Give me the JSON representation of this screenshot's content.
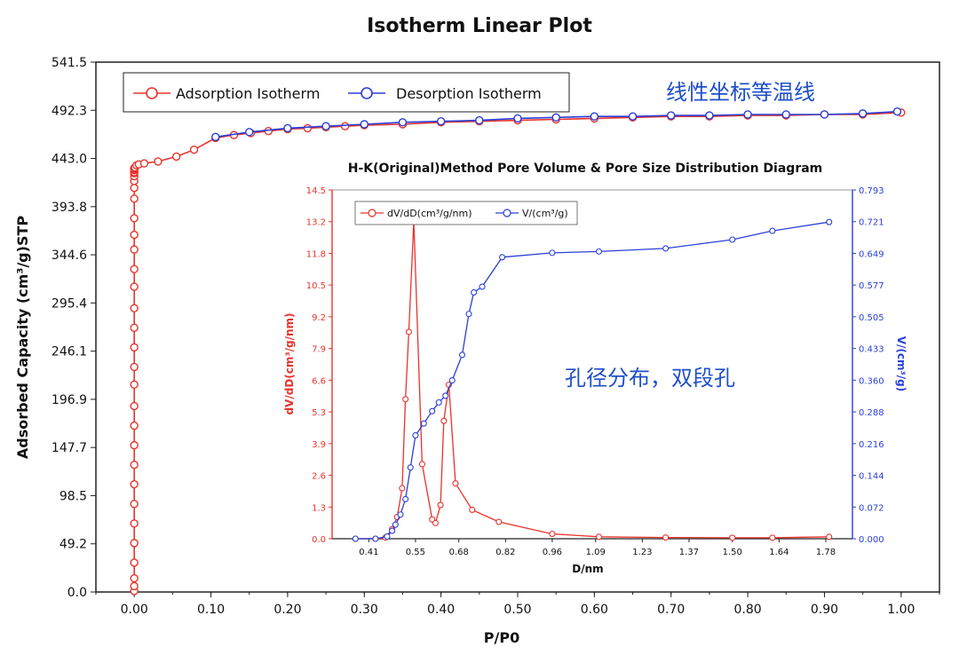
{
  "chart_data": [
    {
      "type": "line",
      "title": "Isotherm Linear Plot",
      "xlabel": "P/P0",
      "ylabel": "Adsorbed Capacity (cm³/g)STP",
      "xlim": [
        -0.05,
        1.05
      ],
      "ylim": [
        0,
        541.5
      ],
      "x_ticks": [
        "0.00",
        "0.10",
        "0.20",
        "0.30",
        "0.40",
        "0.50",
        "0.60",
        "0.70",
        "0.80",
        "0.90",
        "1.00"
      ],
      "y_ticks": [
        "0.0",
        "49.2",
        "98.5",
        "147.7",
        "196.9",
        "246.1",
        "295.4",
        "344.6",
        "393.8",
        "443.0",
        "492.3",
        "541.5"
      ],
      "legend_position": "top-left",
      "series": [
        {
          "name": "Adsorption Isotherm",
          "color": "#e8332c",
          "x": [
            0.0,
            0.0,
            0.0,
            0.0,
            0.0,
            0.0,
            0.0,
            0.0,
            0.0,
            0.0,
            0.0,
            0.0,
            0.0,
            0.0,
            0.0,
            0.0,
            0.0,
            0.0,
            0.0,
            0.0,
            0.0,
            0.0,
            0.0,
            0.0,
            0.0,
            0.0,
            0.0,
            0.0,
            0.0,
            0.0,
            0.0,
            0.001,
            0.003,
            0.006,
            0.013,
            0.031,
            0.055,
            0.078,
            0.106,
            0.13,
            0.152,
            0.175,
            0.2,
            0.226,
            0.25,
            0.275,
            0.3,
            0.35,
            0.4,
            0.45,
            0.5,
            0.55,
            0.6,
            0.65,
            0.7,
            0.75,
            0.8,
            0.85,
            0.9,
            0.95,
            1.0
          ],
          "y": [
            1.0,
            6.0,
            14.0,
            30.0,
            50.0,
            70.0,
            90.0,
            110.0,
            130.0,
            150.0,
            170.0,
            190.0,
            212.0,
            230.0,
            250.0,
            270.0,
            290.0,
            312.0,
            330.0,
            350.0,
            365.0,
            382.0,
            402.0,
            413.0,
            420.0,
            425.0,
            428.0,
            429.0,
            431.0,
            432.0,
            433.0,
            434.0,
            436.0,
            437.0,
            438.0,
            440.0,
            445.0,
            452.0,
            464.0,
            467.0,
            469.0,
            471.0,
            473.0,
            474.0,
            475.0,
            476.0,
            477.0,
            478.0,
            480.0,
            481.0,
            482.0,
            483.0,
            484.0,
            485.0,
            486.0,
            486.0,
            487.0,
            487.0,
            488.0,
            488.0,
            490.0
          ]
        },
        {
          "name": "Desorption Isotherm",
          "color": "#2b3fd6",
          "x": [
            0.106,
            0.15,
            0.2,
            0.25,
            0.3,
            0.35,
            0.4,
            0.45,
            0.5,
            0.55,
            0.6,
            0.65,
            0.7,
            0.75,
            0.8,
            0.85,
            0.9,
            0.95,
            0.995
          ],
          "y": [
            465.0,
            470.0,
            474.0,
            476.0,
            478.0,
            480.0,
            481.0,
            482.0,
            484.0,
            485.0,
            486.0,
            486.0,
            487.0,
            487.0,
            488.0,
            488.0,
            488.0,
            489.0,
            491.0
          ]
        }
      ],
      "annotation": "线性坐标等温线"
    },
    {
      "type": "line",
      "title": "H-K(Original)Method Pore Volume & Pore Size Distribution Diagram",
      "xlabel": "D/nm",
      "ylabel": "dV/dD(cm³/g/nm)",
      "ylabel_right": "V/(cm³/g)",
      "xlim": [
        0.3,
        1.86
      ],
      "ylim": [
        0,
        14.5
      ],
      "ylim_right": [
        0,
        0.793
      ],
      "x_ticks": [
        "0.41",
        "0.55",
        "0.68",
        "0.82",
        "0.96",
        "1.09",
        "1.23",
        "1.37",
        "1.50",
        "1.64",
        "1.78"
      ],
      "y_ticks": [
        "0.0",
        "1.3",
        "2.6",
        "3.9",
        "5.3",
        "6.6",
        "7.9",
        "9.2",
        "10.5",
        "11.8",
        "13.2",
        "14.5"
      ],
      "y_ticks_right": [
        "0.000",
        "0.072",
        "0.144",
        "0.216",
        "0.288",
        "0.360",
        "0.433",
        "0.505",
        "0.577",
        "0.649",
        "0.721",
        "0.793"
      ],
      "legend_position": "top-left",
      "series": [
        {
          "name": "dV/dD(cm³/g/nm)",
          "color": "#e8332c",
          "axis": "left",
          "x": [
            0.37,
            0.43,
            0.46,
            0.48,
            0.495,
            0.51,
            0.52,
            0.53,
            0.545,
            0.57,
            0.6,
            0.61,
            0.625,
            0.635,
            0.65,
            0.67,
            0.72,
            0.8,
            0.96,
            1.1,
            1.3,
            1.5,
            1.62,
            1.79
          ],
          "y": [
            0.0,
            0.0,
            0.05,
            0.4,
            0.9,
            2.1,
            5.8,
            8.6,
            13.2,
            3.1,
            0.8,
            0.65,
            1.4,
            4.9,
            6.4,
            2.3,
            1.2,
            0.7,
            0.2,
            0.08,
            0.05,
            0.04,
            0.04,
            0.08
          ]
        },
        {
          "name": "V/(cm³/g)",
          "color": "#2b3fd6",
          "axis": "right",
          "x": [
            0.37,
            0.43,
            0.465,
            0.48,
            0.49,
            0.505,
            0.52,
            0.535,
            0.55,
            0.575,
            0.6,
            0.62,
            0.64,
            0.66,
            0.69,
            0.71,
            0.725,
            0.75,
            0.81,
            0.96,
            1.1,
            1.3,
            1.5,
            1.62,
            1.79
          ],
          "y": [
            0.0,
            0.0,
            0.005,
            0.018,
            0.032,
            0.055,
            0.09,
            0.162,
            0.235,
            0.262,
            0.29,
            0.31,
            0.325,
            0.36,
            0.418,
            0.511,
            0.56,
            0.573,
            0.64,
            0.65,
            0.653,
            0.66,
            0.68,
            0.7,
            0.72
          ]
        }
      ],
      "annotation": "孔径分布，双段孔"
    }
  ]
}
